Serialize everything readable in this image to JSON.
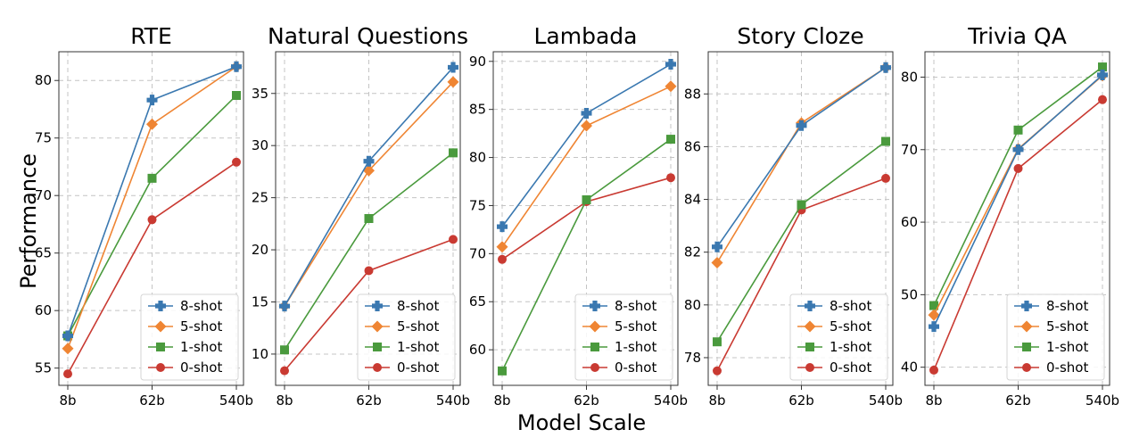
{
  "figure": {
    "ylabel": "Performance",
    "xlabel": "Model Scale"
  },
  "chart_data": [
    {
      "type": "line",
      "title": "RTE",
      "categories": [
        "8b",
        "62b",
        "540b"
      ],
      "ylim": [
        53.5,
        82.5
      ],
      "yticks": [
        55,
        60,
        65,
        70,
        75,
        80
      ],
      "grid": true,
      "legend_position": "bottom-right",
      "series": [
        {
          "name": "8-shot",
          "values": [
            57.8,
            78.3,
            81.2
          ]
        },
        {
          "name": "5-shot",
          "values": [
            56.7,
            76.2,
            81.2
          ]
        },
        {
          "name": "1-shot",
          "values": [
            57.8,
            71.5,
            78.7
          ]
        },
        {
          "name": "0-shot",
          "values": [
            54.5,
            67.9,
            72.9
          ]
        }
      ]
    },
    {
      "type": "line",
      "title": "Natural Questions",
      "categories": [
        "8b",
        "62b",
        "540b"
      ],
      "ylim": [
        7.0,
        39.0
      ],
      "yticks": [
        10,
        15,
        20,
        25,
        30,
        35
      ],
      "grid": true,
      "legend_position": "bottom-right",
      "series": [
        {
          "name": "8-shot",
          "values": [
            14.6,
            28.5,
            37.5
          ]
        },
        {
          "name": "5-shot",
          "values": [
            14.6,
            27.6,
            36.1
          ]
        },
        {
          "name": "1-shot",
          "values": [
            10.4,
            23.0,
            29.3
          ]
        },
        {
          "name": "0-shot",
          "values": [
            8.4,
            18.0,
            21.0
          ]
        }
      ]
    },
    {
      "type": "line",
      "title": "Lambada",
      "categories": [
        "8b",
        "62b",
        "540b"
      ],
      "ylim": [
        56.3,
        91.0
      ],
      "yticks": [
        60,
        65,
        70,
        75,
        80,
        85,
        90
      ],
      "grid": true,
      "legend_position": "bottom-right",
      "series": [
        {
          "name": "8-shot",
          "values": [
            72.8,
            84.6,
            89.7
          ]
        },
        {
          "name": "5-shot",
          "values": [
            70.7,
            83.3,
            87.4
          ]
        },
        {
          "name": "1-shot",
          "values": [
            57.8,
            75.6,
            81.9
          ]
        },
        {
          "name": "0-shot",
          "values": [
            69.4,
            75.4,
            77.9
          ]
        }
      ]
    },
    {
      "type": "line",
      "title": "Story Cloze",
      "categories": [
        "8b",
        "62b",
        "540b"
      ],
      "ylim": [
        76.95,
        89.6
      ],
      "yticks": [
        78,
        80,
        82,
        84,
        86,
        88
      ],
      "grid": true,
      "legend_position": "bottom-right",
      "series": [
        {
          "name": "8-shot",
          "values": [
            82.2,
            86.8,
            89.0
          ]
        },
        {
          "name": "5-shot",
          "values": [
            81.6,
            86.9,
            89.0
          ]
        },
        {
          "name": "1-shot",
          "values": [
            78.6,
            83.8,
            86.2
          ]
        },
        {
          "name": "0-shot",
          "values": [
            77.5,
            83.6,
            84.8
          ]
        }
      ]
    },
    {
      "type": "line",
      "title": "Trivia QA",
      "categories": [
        "8b",
        "62b",
        "540b"
      ],
      "ylim": [
        37.5,
        83.5
      ],
      "yticks": [
        40,
        50,
        60,
        70,
        80
      ],
      "grid": true,
      "legend_position": "bottom-right",
      "series": [
        {
          "name": "8-shot",
          "values": [
            45.6,
            70.0,
            80.3
          ]
        },
        {
          "name": "5-shot",
          "values": [
            47.2,
            70.1,
            80.2
          ]
        },
        {
          "name": "1-shot",
          "values": [
            48.5,
            72.7,
            81.4
          ]
        },
        {
          "name": "0-shot",
          "values": [
            39.6,
            67.4,
            76.9
          ]
        }
      ]
    }
  ],
  "colors": {
    "8-shot": "#3a78b0",
    "5-shot": "#ef8533",
    "1-shot": "#4a9a3d",
    "0-shot": "#c93a32",
    "grid": "#c4c4c4",
    "legend_border": "#d5d5d5"
  },
  "markers": {
    "8-shot": "plus",
    "5-shot": "diamond",
    "1-shot": "square",
    "0-shot": "circle"
  }
}
